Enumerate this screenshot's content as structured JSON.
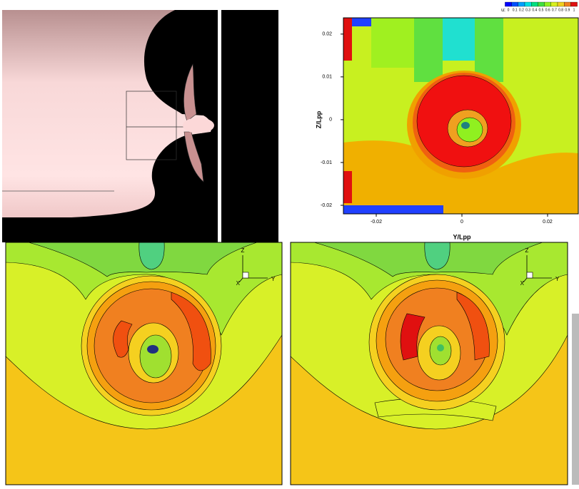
{
  "chart_data": {
    "type": "contour",
    "xlabel": "Y/Lpp",
    "ylabel": "Z/Lpp",
    "xlim": [
      -0.02767,
      0.02717
    ],
    "ylim": [
      -0.022,
      0.0238
    ],
    "xticks": [
      -0.02,
      0,
      0.02
    ],
    "yticks": [
      -0.02,
      -0.01,
      0,
      0.01,
      0.02
    ],
    "legend": {
      "title": "u:",
      "levels": [
        0,
        0.1,
        0.2,
        0.3,
        0.4,
        0.5,
        0.6,
        0.7,
        0.8,
        0.9,
        1
      ],
      "colors": [
        "#0000ff",
        "#0050ff",
        "#00a0ff",
        "#00e0e0",
        "#00e080",
        "#40e040",
        "#90f020",
        "#d8f020",
        "#f0d020",
        "#f08020",
        "#e01010"
      ]
    }
  },
  "axis_triads": [
    [
      "Z",
      "Y",
      "X"
    ],
    [
      "Z",
      "Y",
      "X"
    ]
  ]
}
